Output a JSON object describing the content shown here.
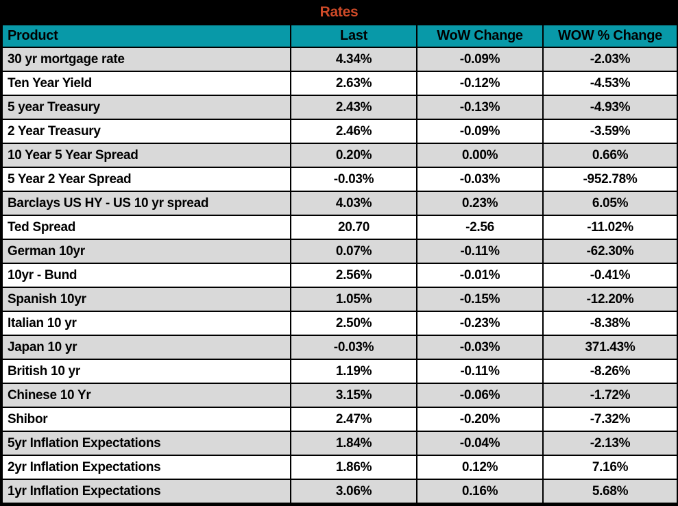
{
  "title": "Rates",
  "colors": {
    "page_background": "#000000",
    "title_text": "#CE4A28",
    "header_background": "#0899A8",
    "header_text": "#000000",
    "row_stripe_background": "#D9D9D9",
    "row_background": "#FFFFFF",
    "cell_text": "#000000",
    "border": "#000000"
  },
  "chart_data": {
    "type": "table",
    "title": "Rates",
    "columns": [
      "Product",
      "Last",
      "WoW Change",
      "WOW % Change"
    ],
    "rows": [
      [
        "30 yr mortgage rate",
        "4.34%",
        "-0.09%",
        "-2.03%"
      ],
      [
        "Ten Year Yield",
        "2.63%",
        "-0.12%",
        "-4.53%"
      ],
      [
        "5 year Treasury",
        "2.43%",
        "-0.13%",
        "-4.93%"
      ],
      [
        "2 Year Treasury",
        "2.46%",
        "-0.09%",
        "-3.59%"
      ],
      [
        "10 Year 5 Year Spread",
        "0.20%",
        "0.00%",
        "0.66%"
      ],
      [
        "5 Year 2 Year Spread",
        "-0.03%",
        "-0.03%",
        "-952.78%"
      ],
      [
        "Barclays US HY - US 10 yr spread",
        "4.03%",
        "0.23%",
        "6.05%"
      ],
      [
        "Ted Spread",
        "20.70",
        "-2.56",
        "-11.02%"
      ],
      [
        "German 10yr",
        "0.07%",
        "-0.11%",
        "-62.30%"
      ],
      [
        "10yr - Bund",
        "2.56%",
        "-0.01%",
        "-0.41%"
      ],
      [
        "Spanish 10yr",
        "1.05%",
        "-0.15%",
        "-12.20%"
      ],
      [
        "Italian 10 yr",
        "2.50%",
        "-0.23%",
        "-8.38%"
      ],
      [
        "Japan 10 yr",
        "-0.03%",
        "-0.03%",
        "371.43%"
      ],
      [
        "British 10 yr",
        "1.19%",
        "-0.11%",
        "-8.26%"
      ],
      [
        "Chinese 10 Yr",
        "3.15%",
        "-0.06%",
        "-1.72%"
      ],
      [
        "Shibor",
        "2.47%",
        "-0.20%",
        "-7.32%"
      ],
      [
        "5yr Inflation Expectations",
        "1.84%",
        "-0.04%",
        "-2.13%"
      ],
      [
        "2yr Inflation Expectations",
        "1.86%",
        "0.12%",
        "7.16%"
      ],
      [
        "1yr Inflation Expectations",
        "3.06%",
        "0.16%",
        "5.68%"
      ]
    ]
  }
}
